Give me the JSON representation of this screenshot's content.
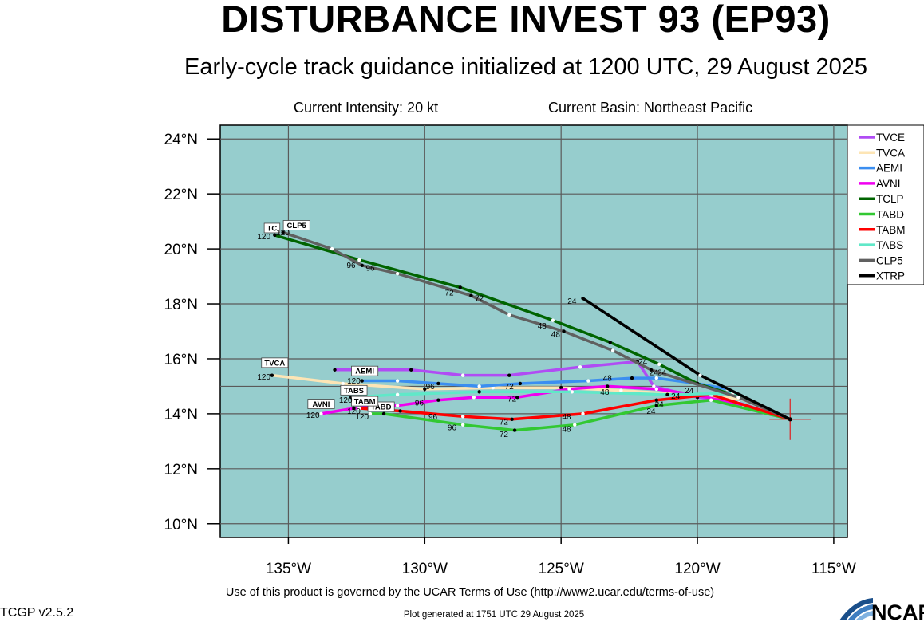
{
  "header": {
    "title": "DISTURBANCE INVEST 93 (EP93)",
    "subtitle": "Early-cycle track guidance initialized at 1200 UTC, 29 August 2025",
    "intensity": "Current Intensity: 20 kt",
    "basin": "Current Basin: Northeast Pacific"
  },
  "footer": {
    "terms": "Use of this product is governed by the UCAR Terms of Use (http://www2.ucar.edu/terms-of-use)",
    "version": "TCGP v2.5.2",
    "generated": "Plot generated at 1751 UTC   29 August 2025",
    "logo_text": "NCAR"
  },
  "chart_data": {
    "type": "line",
    "map_background": "#96cdcd",
    "xlim": [
      -137.5,
      -114.5
    ],
    "ylim": [
      9.5,
      24.5
    ],
    "x_ticks": [
      -135,
      -130,
      -125,
      -120,
      -115
    ],
    "x_tick_labels": [
      "135°W",
      "130°W",
      "125°W",
      "120°W",
      "115°W"
    ],
    "y_ticks": [
      10,
      12,
      14,
      16,
      18,
      20,
      22,
      24
    ],
    "y_tick_labels": [
      "10°N",
      "12°N",
      "14°N",
      "16°N",
      "18°N",
      "20°N",
      "22°N",
      "24°N"
    ],
    "grid": true,
    "legend_position": "right",
    "current_position": {
      "lon": -116.6,
      "lat": 13.8
    },
    "series": [
      {
        "name": "TVCE",
        "color": "#b04cf4",
        "points": [
          [
            -116.6,
            13.8
          ],
          [
            -118.5,
            14.4
          ],
          [
            -120.0,
            14.6
          ],
          [
            -121.6,
            15.0
          ],
          [
            -122.2,
            15.9
          ],
          [
            -124.3,
            15.7
          ],
          [
            -126.9,
            15.4
          ],
          [
            -128.6,
            15.4
          ],
          [
            -130.5,
            15.6
          ],
          [
            -132.0,
            15.6
          ],
          [
            -133.3,
            15.6
          ]
        ],
        "time_labels": [],
        "end_label": ""
      },
      {
        "name": "TVCA",
        "color": "#fde5b5",
        "points": [
          [
            -116.6,
            13.8
          ],
          [
            -118.4,
            14.55
          ],
          [
            -120.5,
            14.7
          ],
          [
            -122.8,
            14.85
          ],
          [
            -125.0,
            14.95
          ],
          [
            -127.5,
            14.95
          ],
          [
            -130.0,
            14.9
          ],
          [
            -133.0,
            15.1
          ],
          [
            -135.6,
            15.4
          ]
        ],
        "time_labels": [
          {
            "text": "120",
            "lon": -135.9,
            "lat": 15.25
          }
        ],
        "end_label": "TVCA",
        "end_label_pos": {
          "lon": -135.5,
          "lat": 15.8
        }
      },
      {
        "name": "AEMI",
        "color": "#3b8ef0",
        "points": [
          [
            -116.6,
            13.8
          ],
          [
            -118.9,
            14.9
          ],
          [
            -120.0,
            15.1
          ],
          [
            -121.5,
            15.3
          ],
          [
            -122.4,
            15.3
          ],
          [
            -124.0,
            15.2
          ],
          [
            -126.5,
            15.1
          ],
          [
            -128.0,
            15.0
          ],
          [
            -129.5,
            15.1
          ],
          [
            -131.0,
            15.2
          ],
          [
            -132.3,
            15.2
          ]
        ],
        "time_labels": [
          {
            "text": "72",
            "lon": -126.9,
            "lat": 14.9
          },
          {
            "text": "96",
            "lon": -129.8,
            "lat": 14.9
          },
          {
            "text": "120",
            "lon": -132.6,
            "lat": 15.1
          },
          {
            "text": "48",
            "lon": -123.3,
            "lat": 15.2
          },
          {
            "text": "24",
            "lon": -121.3,
            "lat": 15.4
          }
        ],
        "end_label": "AEMI",
        "end_label_pos": {
          "lon": -132.2,
          "lat": 15.5
        }
      },
      {
        "name": "AVNI",
        "color": "#f000f0",
        "points": [
          [
            -116.6,
            13.8
          ],
          [
            -118.3,
            14.3
          ],
          [
            -120.1,
            14.7
          ],
          [
            -121.5,
            14.9
          ],
          [
            -123.3,
            15.0
          ],
          [
            -124.7,
            14.9
          ],
          [
            -126.6,
            14.6
          ],
          [
            -128.2,
            14.6
          ],
          [
            -129.5,
            14.5
          ],
          [
            -131.0,
            14.3
          ],
          [
            -132.6,
            14.2
          ],
          [
            -133.8,
            14.0
          ]
        ],
        "time_labels": [
          {
            "text": "24",
            "lon": -120.3,
            "lat": 14.75
          },
          {
            "text": "48",
            "lon": -123.4,
            "lat": 14.7
          },
          {
            "text": "72",
            "lon": -126.8,
            "lat": 14.45
          },
          {
            "text": "96",
            "lon": -130.2,
            "lat": 14.3
          },
          {
            "text": "120",
            "lon": -134.1,
            "lat": 13.85
          }
        ],
        "end_label": "AVNI",
        "end_label_pos": {
          "lon": -133.8,
          "lat": 14.3
        }
      },
      {
        "name": "TCLP",
        "color": "#006400",
        "points": [
          [
            -116.6,
            13.8
          ],
          [
            -118.4,
            14.6
          ],
          [
            -120.0,
            15.1
          ],
          [
            -121.4,
            15.8
          ],
          [
            -123.2,
            16.6
          ],
          [
            -125.3,
            17.4
          ],
          [
            -128.7,
            18.6
          ],
          [
            -132.4,
            19.6
          ],
          [
            -135.5,
            20.5
          ]
        ],
        "time_labels": [
          {
            "text": "24",
            "lon": -121.6,
            "lat": 15.4
          },
          {
            "text": "48",
            "lon": -125.7,
            "lat": 17.1
          },
          {
            "text": "72",
            "lon": -129.1,
            "lat": 18.3
          },
          {
            "text": "96",
            "lon": -132.7,
            "lat": 19.3
          },
          {
            "text": "120",
            "lon": -135.9,
            "lat": 20.35
          }
        ],
        "end_label": "TC",
        "end_label_pos": {
          "lon": -135.6,
          "lat": 20.7
        }
      },
      {
        "name": "TABD",
        "color": "#32c832",
        "points": [
          [
            -116.6,
            13.8
          ],
          [
            -119.5,
            14.5
          ],
          [
            -121.5,
            14.3
          ],
          [
            -124.5,
            13.6
          ],
          [
            -126.7,
            13.4
          ],
          [
            -128.6,
            13.6
          ],
          [
            -131.5,
            14.0
          ],
          [
            -132.0,
            14.0
          ]
        ],
        "time_labels": [
          {
            "text": "24",
            "lon": -121.7,
            "lat": 14.0
          },
          {
            "text": "48",
            "lon": -124.8,
            "lat": 13.35
          },
          {
            "text": "72",
            "lon": -127.1,
            "lat": 13.15
          },
          {
            "text": "96",
            "lon": -129.0,
            "lat": 13.4
          },
          {
            "text": "120",
            "lon": -132.3,
            "lat": 13.8
          }
        ],
        "end_label": "TABD",
        "end_label_pos": {
          "lon": -131.6,
          "lat": 14.2
        }
      },
      {
        "name": "TABM",
        "color": "#ff0000",
        "points": [
          [
            -116.6,
            13.8
          ],
          [
            -119.5,
            14.7
          ],
          [
            -121.5,
            14.5
          ],
          [
            -124.2,
            14.0
          ],
          [
            -126.8,
            13.8
          ],
          [
            -128.6,
            13.9
          ],
          [
            -130.9,
            14.1
          ],
          [
            -132.4,
            14.2
          ]
        ],
        "time_labels": [
          {
            "text": "24",
            "lon": -121.4,
            "lat": 14.25
          },
          {
            "text": "48",
            "lon": -124.8,
            "lat": 13.8
          },
          {
            "text": "72",
            "lon": -127.1,
            "lat": 13.6
          },
          {
            "text": "96",
            "lon": -129.7,
            "lat": 13.8
          },
          {
            "text": "120",
            "lon": -132.6,
            "lat": 14.0
          }
        ],
        "end_label": "TABM",
        "end_label_pos": {
          "lon": -132.2,
          "lat": 14.4
        }
      },
      {
        "name": "TABS",
        "color": "#60e8c8",
        "points": [
          [
            -116.6,
            13.8
          ],
          [
            -118.7,
            14.75
          ],
          [
            -121.1,
            14.7
          ],
          [
            -124.6,
            14.8
          ],
          [
            -128.0,
            14.8
          ],
          [
            -131.0,
            14.7
          ],
          [
            -132.7,
            14.6
          ]
        ],
        "time_labels": [
          {
            "text": "24",
            "lon": -120.8,
            "lat": 14.55
          },
          {
            "text": "120",
            "lon": -132.9,
            "lat": 14.4
          }
        ],
        "end_label": "TABS",
        "end_label_pos": {
          "lon": -132.6,
          "lat": 14.8
        }
      },
      {
        "name": "CLP5",
        "color": "#606060",
        "points": [
          [
            -116.6,
            13.8
          ],
          [
            -118.5,
            14.6
          ],
          [
            -121.7,
            15.6
          ],
          [
            -123.1,
            16.3
          ],
          [
            -124.9,
            17.0
          ],
          [
            -126.9,
            17.6
          ],
          [
            -128.3,
            18.3
          ],
          [
            -131.0,
            19.1
          ],
          [
            -132.3,
            19.4
          ],
          [
            -133.4,
            20.0
          ],
          [
            -135.2,
            20.6
          ]
        ],
        "time_labels": [
          {
            "text": "24",
            "lon": -122.0,
            "lat": 15.8
          },
          {
            "text": "48",
            "lon": -125.2,
            "lat": 16.8
          },
          {
            "text": "72",
            "lon": -128.0,
            "lat": 18.1
          },
          {
            "text": "96",
            "lon": -132.0,
            "lat": 19.2
          },
          {
            "text": "120",
            "lon": -135.2,
            "lat": 20.5
          }
        ],
        "end_label": "CLP5",
        "end_label_pos": {
          "lon": -134.7,
          "lat": 20.8
        }
      },
      {
        "name": "XTRP",
        "color": "#000000",
        "points": [
          [
            -116.6,
            13.8
          ],
          [
            -119.9,
            15.4
          ],
          [
            -124.2,
            18.2
          ]
        ],
        "time_labels": [
          {
            "text": "24",
            "lon": -124.6,
            "lat": 18.0
          }
        ],
        "end_label": ""
      }
    ]
  }
}
